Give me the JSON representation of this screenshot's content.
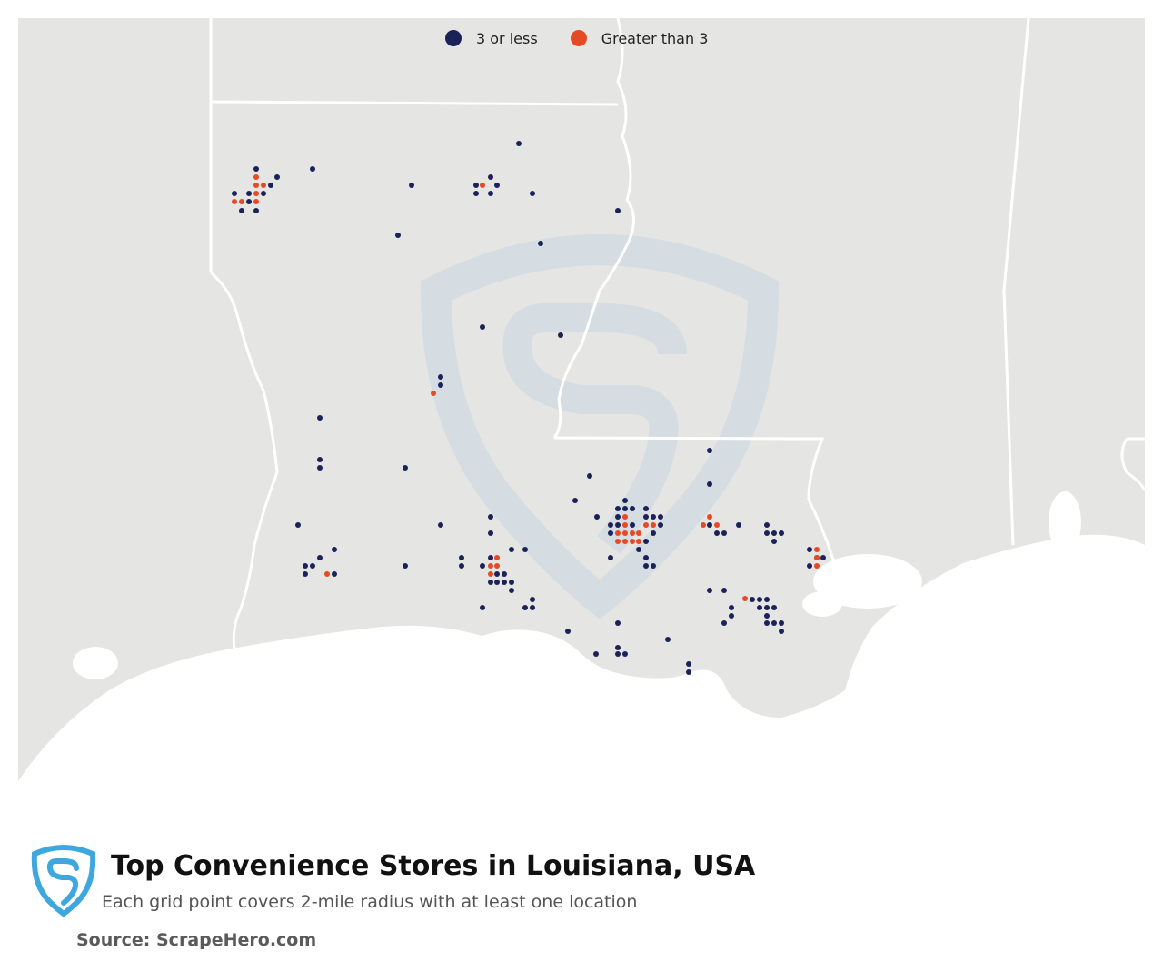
{
  "legend": {
    "items": [
      {
        "label": "3 or less",
        "color": "#1b2259"
      },
      {
        "label": "Greater than 3",
        "color": "#e64a25"
      }
    ]
  },
  "colors": {
    "land": "#e5e5e3",
    "water": "#ffffff",
    "border": "#ffffff",
    "watermark": "#c9d7e2",
    "logo": "#3ea7de"
  },
  "footer": {
    "title": "Top Convenience Stores in Louisiana, USA",
    "subtitle": "Each grid point covers 2-mile radius with at least one location",
    "source": "Source: ScrapeHero.com",
    "logo_icon": "scrapehero-shield-icon"
  },
  "map": {
    "region": "Louisiana, USA",
    "watermark_icon": "scrapehero-shield-watermark-icon"
  }
}
